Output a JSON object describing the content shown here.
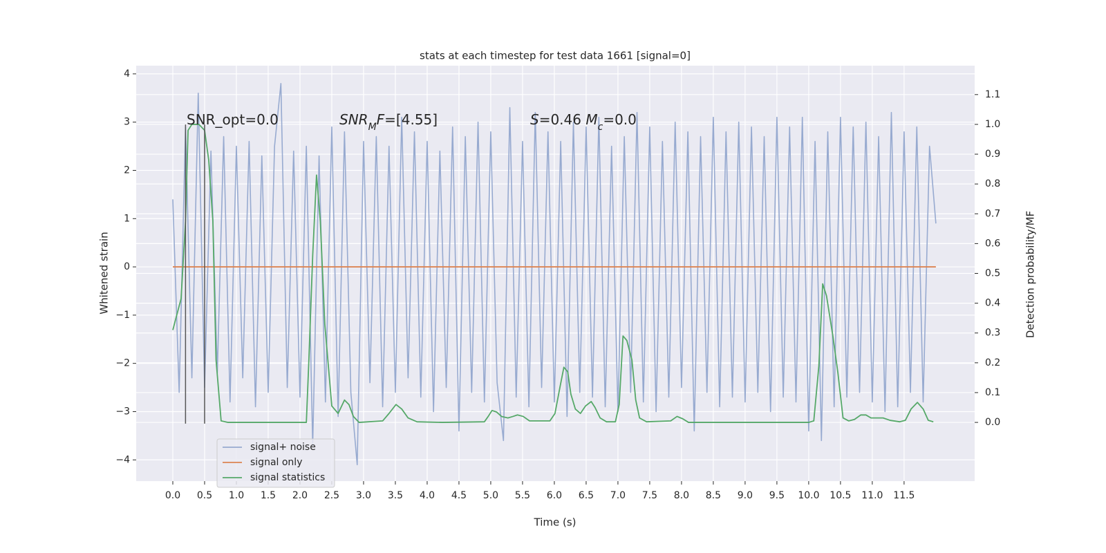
{
  "chart_data": {
    "type": "line",
    "title": "stats at each timestep for test data 1661 [signal=0]",
    "xlabel": "Time (s)",
    "ylabel": "Whitened strain",
    "y2label": "Detection probability/MF",
    "xlim": [
      -0.576,
      12.61
    ],
    "ylim": [
      -4.44,
      4.17
    ],
    "y2lim": [
      -0.197,
      1.197
    ],
    "xticks": [
      {
        "value": 0,
        "label": "0.0"
      },
      0.5,
      {
        "value": 1,
        "label": "1.0"
      },
      1.5,
      {
        "value": 2,
        "label": "2.0"
      },
      2.5,
      {
        "value": 3,
        "label": "3.0"
      },
      3.5,
      {
        "value": 4,
        "label": "4.0"
      },
      4.5,
      {
        "value": 5,
        "label": "5.0"
      },
      5.5,
      {
        "value": 6,
        "label": "6.0"
      },
      6.5,
      {
        "value": 7,
        "label": "7.0"
      },
      7.5,
      {
        "value": 8,
        "label": "8.0"
      },
      8.5,
      {
        "value": 9,
        "label": "9.0"
      },
      9.5,
      {
        "value": 10,
        "label": "10.0"
      },
      10.5,
      {
        "value": 11,
        "label": "11.0"
      },
      11.5
    ],
    "yticks": [
      {
        "value": -4,
        "label": "−4"
      },
      {
        "value": -3,
        "label": "−3"
      },
      {
        "value": -2,
        "label": "−2"
      },
      {
        "value": -1,
        "label": "−1"
      },
      0,
      1,
      2,
      3,
      4
    ],
    "y2ticks": [
      {
        "value": 0,
        "label": "0.0"
      },
      0.1,
      0.2,
      0.3,
      0.4,
      0.5,
      0.6,
      0.7,
      0.8,
      0.9,
      {
        "value": 1,
        "label": "1.0"
      },
      1.1
    ],
    "grid": true,
    "legend": "lower left",
    "series": [
      {
        "name": "signal+ noise",
        "color": "#97aad0",
        "x": [
          0,
          0.1,
          0.2,
          0.3,
          0.4,
          0.5,
          0.6,
          0.7,
          0.8,
          0.9,
          1,
          1.1,
          1.2,
          1.3,
          1.4,
          1.5,
          1.6,
          1.7,
          1.8,
          1.9,
          2,
          2.1,
          2.2,
          2.3,
          2.4,
          2.5,
          2.6,
          2.7,
          2.8,
          2.9,
          3,
          3.1,
          3.2,
          3.3,
          3.4,
          3.5,
          3.6,
          3.7,
          3.8,
          3.9,
          4,
          4.1,
          4.2,
          4.3,
          4.4,
          4.5,
          4.6,
          4.7,
          4.8,
          4.9,
          5,
          5.1,
          5.2,
          5.3,
          5.4,
          5.5,
          5.6,
          5.7,
          5.8,
          5.9,
          6,
          6.1,
          6.2,
          6.3,
          6.4,
          6.5,
          6.6,
          6.7,
          6.8,
          6.9,
          7,
          7.1,
          7.2,
          7.3,
          7.4,
          7.5,
          7.6,
          7.7,
          7.8,
          7.9,
          8,
          8.1,
          8.2,
          8.3,
          8.4,
          8.5,
          8.6,
          8.7,
          8.8,
          8.9,
          9,
          9.1,
          9.2,
          9.3,
          9.4,
          9.5,
          9.6,
          9.7,
          9.8,
          9.9,
          10,
          10.1,
          10.2,
          10.3,
          10.4,
          10.5,
          10.6,
          10.7,
          10.8,
          10.9,
          11,
          11.1,
          11.2,
          11.3,
          11.4,
          11.5,
          11.6,
          11.7,
          11.8,
          11.9,
          12
        ],
        "values": [
          1.4,
          -2.6,
          2.9,
          -2.3,
          3.6,
          -2.5,
          2.4,
          -2.2,
          2.7,
          -2.8,
          2.5,
          -2.3,
          2.6,
          -2.9,
          2.3,
          -2.6,
          2.5,
          3.8,
          -2.5,
          2.4,
          -2.7,
          2.5,
          -3.7,
          2.3,
          -2.8,
          2.9,
          -3.1,
          2.8,
          -2.6,
          -4.1,
          2.6,
          -2.4,
          2.7,
          -2.9,
          2.5,
          -2.6,
          3.1,
          -2.3,
          2.8,
          -2.7,
          2.6,
          -3.0,
          2.4,
          -2.5,
          2.9,
          -3.4,
          2.7,
          -2.6,
          3.0,
          -2.8,
          2.8,
          -2.4,
          -3.6,
          3.3,
          -2.7,
          2.6,
          -2.9,
          3.2,
          -2.5,
          2.8,
          -2.8,
          2.6,
          -3.1,
          3.0,
          -2.6,
          2.9,
          -2.7,
          3.1,
          -2.9,
          2.5,
          -3.0,
          2.7,
          -2.6,
          3.2,
          -2.8,
          2.9,
          -3.0,
          2.6,
          -2.7,
          3.0,
          -2.5,
          2.8,
          -3.4,
          2.7,
          -2.6,
          3.1,
          -2.9,
          2.8,
          -2.7,
          3.0,
          -2.8,
          2.9,
          -2.6,
          2.7,
          -3.0,
          3.1,
          -2.7,
          2.9,
          -2.8,
          3.1,
          -3.4,
          2.6,
          -3.6,
          2.8,
          -2.9,
          3.1,
          -2.7,
          2.9,
          -2.6,
          3.0,
          -2.8,
          2.7,
          -3.0,
          3.2,
          -2.9,
          2.8,
          -2.6,
          2.9,
          -2.8,
          2.5,
          0.9
        ]
      },
      {
        "name": "signal only",
        "color": "#dd8452",
        "x": [
          0,
          12
        ],
        "values": [
          0,
          0
        ]
      },
      {
        "name": "signal statistics",
        "color": "#55a868",
        "axis": "y2",
        "x": [
          0,
          0.13,
          0.2,
          0.24,
          0.3,
          0.41,
          0.5,
          0.565,
          0.63,
          0.68,
          0.76,
          0.87,
          2.1,
          2.14,
          2.2,
          2.26,
          2.32,
          2.39,
          2.5,
          2.6,
          2.7,
          2.77,
          2.84,
          2.93,
          3.3,
          3.4,
          3.51,
          3.6,
          3.7,
          3.84,
          4.24,
          4.9,
          4.96,
          5.02,
          5.09,
          5.17,
          5.27,
          5.35,
          5.42,
          5.51,
          5.61,
          5.93,
          6.01,
          6.09,
          6.15,
          6.21,
          6.26,
          6.33,
          6.41,
          6.49,
          6.58,
          6.64,
          6.72,
          6.82,
          6.96,
          7.02,
          7.08,
          7.14,
          7.22,
          7.28,
          7.34,
          7.45,
          7.83,
          7.93,
          8.02,
          8.11,
          10.0,
          10.08,
          10.16,
          10.22,
          10.28,
          10.38,
          10.46,
          10.54,
          10.63,
          10.72,
          10.82,
          10.9,
          10.98,
          11.07,
          11.17,
          11.28,
          11.43,
          11.52,
          11.61,
          11.71,
          11.8,
          11.88,
          11.96
        ],
        "values": [
          0.31,
          0.415,
          0.675,
          0.98,
          1.0,
          1.0,
          0.98,
          0.88,
          0.675,
          0.21,
          0.005,
          0,
          0,
          0.21,
          0.56,
          0.83,
          0.675,
          0.33,
          0.055,
          0.03,
          0.075,
          0.06,
          0.02,
          0,
          0.005,
          0.03,
          0.06,
          0.045,
          0.015,
          0.002,
          0,
          0.002,
          0.02,
          0.04,
          0.035,
          0.02,
          0.015,
          0.02,
          0.025,
          0.02,
          0.005,
          0.005,
          0.03,
          0.12,
          0.185,
          0.17,
          0.095,
          0.045,
          0.03,
          0.055,
          0.07,
          0.05,
          0.015,
          0.002,
          0.002,
          0.06,
          0.29,
          0.275,
          0.21,
          0.075,
          0.015,
          0.002,
          0.005,
          0.02,
          0.012,
          0,
          0,
          0.005,
          0.19,
          0.465,
          0.425,
          0.29,
          0.165,
          0.015,
          0.005,
          0.01,
          0.025,
          0.025,
          0.015,
          0.015,
          0.015,
          0.007,
          0.002,
          0.007,
          0.045,
          0.067,
          0.045,
          0.007,
          0.002
        ]
      }
    ],
    "vlines": [
      {
        "x": 0.2,
        "ymin": -3.25,
        "ymax": 2.95,
        "color": "#555555"
      },
      {
        "x": 0.5,
        "ymin": -3.25,
        "ymax": 2.95,
        "color": "#555555"
      }
    ],
    "annotations": [
      {
        "runs": [
          {
            "text": "SNR_opt=0.0",
            "style": "normal"
          }
        ]
      },
      {
        "runs": [
          {
            "text": "SNR",
            "style": "italic"
          },
          {
            "text": "M",
            "style": "italic-sub"
          },
          {
            "text": "F",
            "style": "italic"
          },
          {
            "text": "=[4.55]",
            "style": "normal"
          }
        ]
      },
      {
        "runs": [
          {
            "text": "S",
            "style": "italic"
          },
          {
            "text": "=0.46   ",
            "style": "normal"
          },
          {
            "text": "M",
            "style": "italic"
          },
          {
            "text": "c",
            "style": "italic-sub"
          },
          {
            "text": "=0.0",
            "style": "normal"
          }
        ]
      }
    ]
  }
}
